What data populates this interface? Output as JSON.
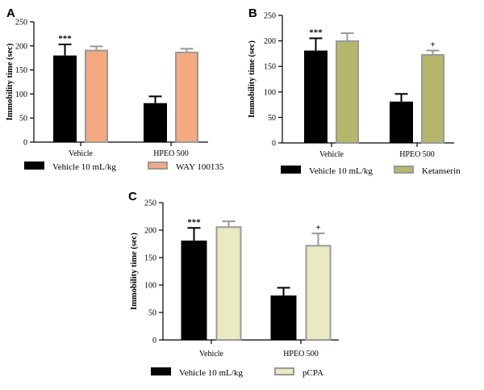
{
  "chart_data": [
    {
      "type": "bar",
      "panel": "A",
      "ylabel": "Immobility time (sec)",
      "ylim": [
        0,
        250
      ],
      "yticks": [
        0,
        50,
        100,
        150,
        200,
        250
      ],
      "categories": [
        "Vehicle",
        "HPEO 500"
      ],
      "series": [
        {
          "name": "Vehicle 10 mL/kg",
          "color": "#000000",
          "stroke": "#000000",
          "values": [
            180,
            81
          ],
          "errors": [
            23,
            14
          ]
        },
        {
          "name": "WAY 100135",
          "color": "#f4a97f",
          "stroke": "#999999",
          "values": [
            192,
            188
          ],
          "errors": [
            7,
            6
          ]
        }
      ],
      "annotations": [
        [
          "***",
          ""
        ],
        [
          "",
          ""
        ]
      ],
      "legend": "bottom"
    },
    {
      "type": "bar",
      "panel": "B",
      "ylabel": "Immobility time (sec)",
      "ylim": [
        0,
        250
      ],
      "yticks": [
        0,
        50,
        100,
        150,
        200,
        250
      ],
      "categories": [
        "Vehicle",
        "HPEO 500"
      ],
      "series": [
        {
          "name": "Vehicle 10 mL/kg",
          "color": "#000000",
          "stroke": "#000000",
          "values": [
            181,
            81
          ],
          "errors": [
            24,
            15
          ]
        },
        {
          "name": "Ketanserin",
          "color": "#b5b86a",
          "stroke": "#999999",
          "values": [
            201,
            174
          ],
          "errors": [
            14,
            7
          ]
        }
      ],
      "annotations": [
        [
          "***",
          ""
        ],
        [
          "",
          "+"
        ]
      ],
      "legend": "bottom"
    },
    {
      "type": "bar",
      "panel": "C",
      "ylabel": "Immobility time (sec)",
      "ylim": [
        0,
        250
      ],
      "yticks": [
        0,
        50,
        100,
        150,
        200,
        250
      ],
      "categories": [
        "Vehicle",
        "HPEO 500"
      ],
      "series": [
        {
          "name": "Vehicle 10 mL/kg",
          "color": "#000000",
          "stroke": "#000000",
          "values": [
            181,
            81
          ],
          "errors": [
            23,
            14
          ]
        },
        {
          "name": "pCPA",
          "color": "#e9e9c2",
          "stroke": "#999999",
          "values": [
            207,
            173
          ],
          "errors": [
            9,
            21
          ]
        }
      ],
      "annotations": [
        [
          "***",
          ""
        ],
        [
          "",
          "+"
        ]
      ],
      "legend": "bottom"
    }
  ]
}
